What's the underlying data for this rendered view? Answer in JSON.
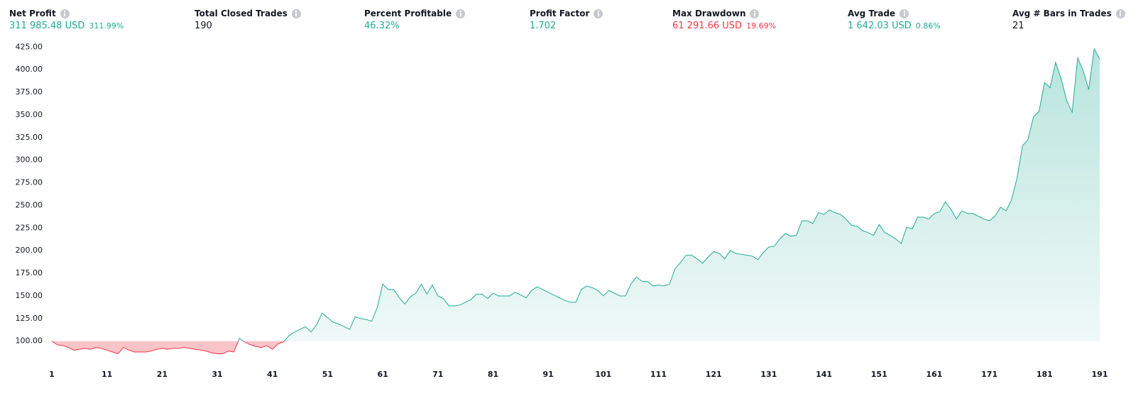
{
  "stats": [
    {
      "label": "Net Profit",
      "value": "311 985.48 USD",
      "percent": "311.99%",
      "color": "#22ab94"
    },
    {
      "label": "Total Closed Trades",
      "value": "190",
      "color": "#131722"
    },
    {
      "label": "Percent Profitable",
      "value": "46.32%",
      "color": "#22ab94"
    },
    {
      "label": "Profit Factor",
      "value": "1.702",
      "color": "#22ab94"
    },
    {
      "label": "Max Drawdown",
      "value": "61 291.66 USD",
      "percent": "19.69%",
      "color": "#f23645"
    },
    {
      "label": "Avg Trade",
      "value": "1 642.03 USD",
      "percent": "0.86%",
      "color": "#22ab94"
    },
    {
      "label": "Avg # Bars in Trades",
      "value": "21",
      "color": "#131722"
    }
  ],
  "chart_data": {
    "type": "area",
    "x": [
      1,
      2,
      3,
      4,
      5,
      6,
      7,
      8,
      9,
      10,
      11,
      12,
      13,
      14,
      15,
      16,
      17,
      18,
      19,
      20,
      21,
      22,
      23,
      24,
      25,
      26,
      27,
      28,
      29,
      30,
      31,
      32,
      33,
      34,
      35,
      36,
      37,
      38,
      39,
      40,
      41,
      42,
      43,
      44,
      45,
      46,
      47,
      48,
      49,
      50,
      51,
      52,
      53,
      54,
      55,
      56,
      57,
      58,
      59,
      60,
      61,
      62,
      63,
      64,
      65,
      66,
      67,
      68,
      69,
      70,
      71,
      72,
      73,
      74,
      75,
      76,
      77,
      78,
      79,
      80,
      81,
      82,
      83,
      84,
      85,
      86,
      87,
      88,
      89,
      90,
      91,
      92,
      93,
      94,
      95,
      96,
      97,
      98,
      99,
      100,
      101,
      102,
      103,
      104,
      105,
      106,
      107,
      108,
      109,
      110,
      111,
      112,
      113,
      114,
      115,
      116,
      117,
      118,
      119,
      120,
      121,
      122,
      123,
      124,
      125,
      126,
      127,
      128,
      129,
      130,
      131,
      132,
      133,
      134,
      135,
      136,
      137,
      138,
      139,
      140,
      141,
      142,
      143,
      144,
      145,
      146,
      147,
      148,
      149,
      150,
      151,
      152,
      153,
      154,
      155,
      156,
      157,
      158,
      159,
      160,
      161,
      162,
      163,
      164,
      165,
      166,
      167,
      168,
      169,
      170,
      171,
      172,
      173,
      174,
      175,
      176,
      177,
      178,
      179,
      180,
      181,
      182,
      183,
      184,
      185,
      186,
      187,
      188,
      189,
      190,
      191
    ],
    "values": [
      100,
      96,
      95,
      93,
      90,
      91,
      92,
      91,
      93,
      92,
      90,
      88,
      86,
      93,
      90,
      88,
      88,
      88,
      89,
      91,
      92,
      91,
      92,
      92,
      93,
      92,
      91,
      90,
      89,
      87,
      86,
      86,
      89,
      88,
      103,
      99,
      96,
      94,
      93,
      95,
      91,
      97,
      99,
      106,
      110,
      113,
      116,
      110,
      118,
      131,
      126,
      121,
      119,
      116,
      113,
      127,
      125,
      124,
      122,
      137,
      163,
      157,
      157,
      148,
      141,
      149,
      153,
      163,
      152,
      162,
      150,
      147,
      139,
      139,
      140,
      143,
      146,
      152,
      152,
      147,
      153,
      150,
      150,
      150,
      154,
      151,
      148,
      156,
      160,
      157,
      154,
      151,
      148,
      145,
      143,
      143,
      157,
      161,
      159,
      156,
      150,
      156,
      153,
      150,
      150,
      163,
      171,
      166,
      166,
      161,
      162,
      161,
      163,
      180,
      187,
      195,
      195,
      191,
      186,
      193,
      199,
      197,
      191,
      200,
      197,
      196,
      195,
      194,
      190,
      198,
      204,
      205,
      213,
      219,
      216,
      217,
      233,
      233,
      230,
      242,
      240,
      245,
      242,
      240,
      235,
      228,
      227,
      222,
      220,
      217,
      229,
      220,
      217,
      213,
      208,
      226,
      224,
      237,
      237,
      235,
      241,
      243,
      254,
      246,
      235,
      244,
      241,
      241,
      238,
      235,
      233,
      238,
      248,
      244,
      256,
      280,
      316,
      323,
      348,
      354,
      386,
      380,
      408,
      390,
      366,
      353,
      413,
      399,
      378,
      423,
      412
    ],
    "up_color": "#22ab94",
    "down_color": "#f23645",
    "xlim": [
      1,
      191
    ],
    "xticks": [
      1,
      11,
      21,
      31,
      41,
      51,
      61,
      71,
      81,
      91,
      101,
      111,
      121,
      131,
      141,
      151,
      161,
      171,
      181,
      191
    ],
    "ylim": [
      77,
      430
    ],
    "yticks": [
      {
        "value": 100,
        "label": "100.00"
      },
      {
        "value": 125,
        "label": "125.00"
      },
      {
        "value": 150,
        "label": "150.00"
      },
      {
        "value": 175,
        "label": "175.00"
      },
      {
        "value": 200,
        "label": "200.00"
      },
      {
        "value": 225,
        "label": "225.00"
      },
      {
        "value": 250,
        "label": "250.00"
      },
      {
        "value": 275,
        "label": "275.00"
      },
      {
        "value": 300,
        "label": "300.00"
      },
      {
        "value": 325,
        "label": "325.00"
      },
      {
        "value": 350,
        "label": "350.00"
      },
      {
        "value": 375,
        "label": "375.00"
      },
      {
        "value": 400,
        "label": "400.00"
      },
      {
        "value": 425,
        "label": "425.00"
      }
    ]
  }
}
